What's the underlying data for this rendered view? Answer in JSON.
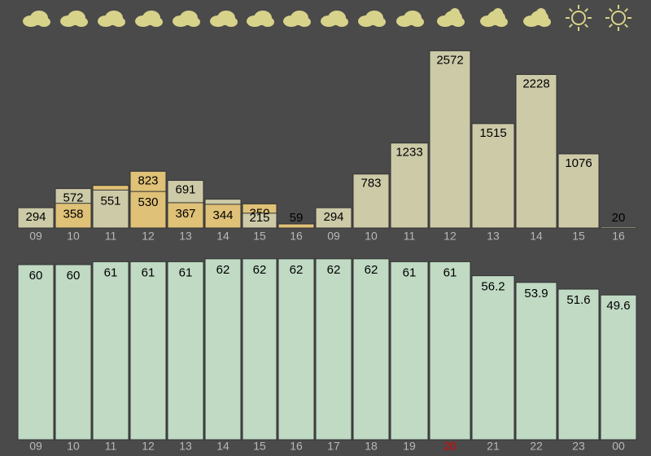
{
  "upper": {
    "categories": [
      "09",
      "10",
      "11",
      "12",
      "13",
      "14",
      "15",
      "16",
      "09",
      "10",
      "11",
      "12",
      "13",
      "14",
      "15",
      "16"
    ],
    "values": [
      294,
      572,
      618,
      823,
      691,
      418,
      350,
      59,
      294,
      783,
      1233,
      2572,
      1515,
      2228,
      1076,
      20
    ],
    "colors": [
      "#cdcaa8",
      "#cdcaa8",
      "#dfc177",
      "#dfc177",
      "#cdcaa8",
      "#cdcaa8",
      "#dfc177",
      "#dfc177",
      "#cdcaa8",
      "#cdcaa8",
      "#cdcaa8",
      "#cdcaa8",
      "#cdcaa8",
      "#cdcaa8",
      "#cdcaa8",
      "#cdcaa8"
    ],
    "inner_values": [
      null,
      358,
      551,
      530,
      367,
      344,
      215,
      null,
      null,
      null,
      null,
      null,
      null,
      null,
      null,
      null
    ],
    "inner_colors": [
      null,
      "#dfc177",
      "#cdcaa8",
      "#dfc177",
      "#dfc177",
      "#dfc177",
      "#cdcaa8",
      null,
      null,
      null,
      null,
      null,
      null,
      null,
      null,
      null
    ],
    "ylim": [
      0,
      2600
    ]
  },
  "lower": {
    "categories": [
      "09",
      "10",
      "11",
      "12",
      "13",
      "14",
      "15",
      "16",
      "17",
      "18",
      "19",
      "20",
      "21",
      "22",
      "23",
      "00"
    ],
    "values": [
      60,
      60,
      61,
      61,
      61,
      62,
      62,
      62,
      62,
      62,
      61,
      61,
      56.2,
      53.9,
      51.6,
      49.6
    ],
    "color": "#c0dac4",
    "highlight_index": 11,
    "highlight_color": "#e00000",
    "ylim": [
      0,
      60
    ]
  }
}
